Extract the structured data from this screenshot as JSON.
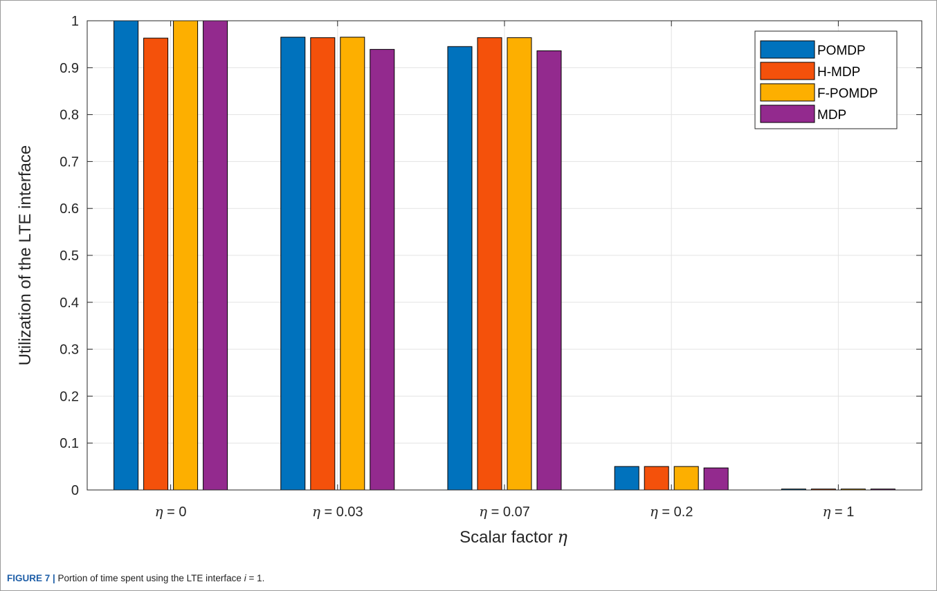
{
  "chart_data": {
    "type": "bar",
    "categories": [
      "η = 0",
      "η = 0.03",
      "η = 0.07",
      "η = 0.2",
      "η = 1"
    ],
    "category_parts": [
      {
        "symbol": "η",
        "rest": " = 0"
      },
      {
        "symbol": "η",
        "rest": " = 0.03"
      },
      {
        "symbol": "η",
        "rest": " = 0.07"
      },
      {
        "symbol": "η",
        "rest": " = 0.2"
      },
      {
        "symbol": "η",
        "rest": " = 1"
      }
    ],
    "series": [
      {
        "name": "POMDP",
        "color": "#0072bd",
        "values": [
          1.0,
          0.965,
          0.945,
          0.05,
          0.002
        ]
      },
      {
        "name": "H-MDP",
        "color": "#f4510b",
        "values": [
          0.963,
          0.964,
          0.964,
          0.05,
          0.002
        ]
      },
      {
        "name": "F-POMDP",
        "color": "#fdaf00",
        "values": [
          1.0,
          0.965,
          0.964,
          0.05,
          0.002
        ]
      },
      {
        "name": "MDP",
        "color": "#932a8e",
        "values": [
          1.0,
          0.939,
          0.936,
          0.047,
          0.002
        ]
      }
    ],
    "ylabel": "Utilization of the LTE interface",
    "xlabel_text": "Scalar factor ",
    "xlabel_symbol": "η",
    "ylim": [
      0,
      1
    ],
    "yticks": [
      "0",
      "0.1",
      "0.2",
      "0.3",
      "0.4",
      "0.5",
      "0.6",
      "0.7",
      "0.8",
      "0.9",
      "1"
    ],
    "grid": true,
    "legend_position": "top-right"
  },
  "caption": {
    "label": "FIGURE 7 |",
    "text": " Portion of time spent using the LTE interface ",
    "var": "i",
    "tail": " = 1."
  }
}
